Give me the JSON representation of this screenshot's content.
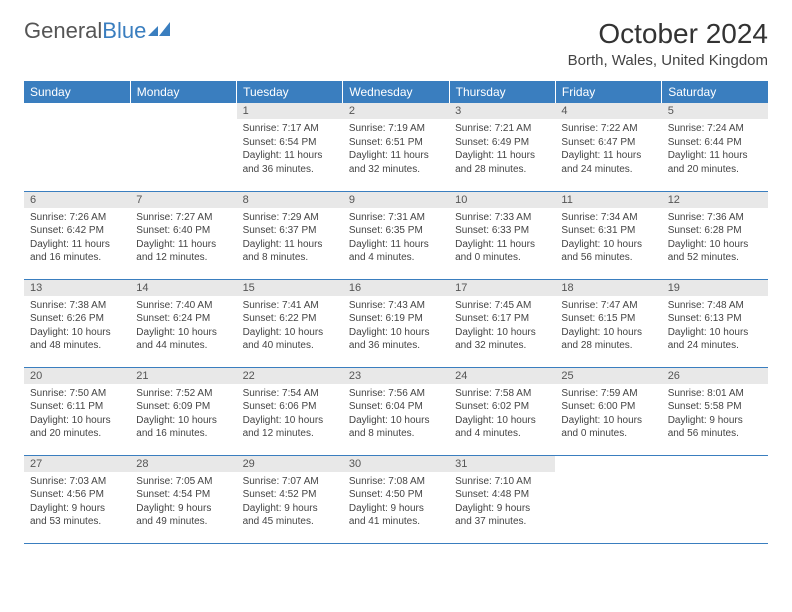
{
  "logo": {
    "part1": "General",
    "part2": "Blue"
  },
  "header": {
    "month": "October 2024",
    "location": "Borth, Wales, United Kingdom"
  },
  "colors": {
    "header_bg": "#3a7ebf",
    "header_fg": "#ffffff",
    "daynum_bg": "#e8e8e8",
    "border": "#3a7ebf"
  },
  "weekdays": [
    "Sunday",
    "Monday",
    "Tuesday",
    "Wednesday",
    "Thursday",
    "Friday",
    "Saturday"
  ],
  "weeks": [
    [
      null,
      null,
      {
        "n": "1",
        "sr": "Sunrise: 7:17 AM",
        "ss": "Sunset: 6:54 PM",
        "dl": "Daylight: 11 hours and 36 minutes."
      },
      {
        "n": "2",
        "sr": "Sunrise: 7:19 AM",
        "ss": "Sunset: 6:51 PM",
        "dl": "Daylight: 11 hours and 32 minutes."
      },
      {
        "n": "3",
        "sr": "Sunrise: 7:21 AM",
        "ss": "Sunset: 6:49 PM",
        "dl": "Daylight: 11 hours and 28 minutes."
      },
      {
        "n": "4",
        "sr": "Sunrise: 7:22 AM",
        "ss": "Sunset: 6:47 PM",
        "dl": "Daylight: 11 hours and 24 minutes."
      },
      {
        "n": "5",
        "sr": "Sunrise: 7:24 AM",
        "ss": "Sunset: 6:44 PM",
        "dl": "Daylight: 11 hours and 20 minutes."
      }
    ],
    [
      {
        "n": "6",
        "sr": "Sunrise: 7:26 AM",
        "ss": "Sunset: 6:42 PM",
        "dl": "Daylight: 11 hours and 16 minutes."
      },
      {
        "n": "7",
        "sr": "Sunrise: 7:27 AM",
        "ss": "Sunset: 6:40 PM",
        "dl": "Daylight: 11 hours and 12 minutes."
      },
      {
        "n": "8",
        "sr": "Sunrise: 7:29 AM",
        "ss": "Sunset: 6:37 PM",
        "dl": "Daylight: 11 hours and 8 minutes."
      },
      {
        "n": "9",
        "sr": "Sunrise: 7:31 AM",
        "ss": "Sunset: 6:35 PM",
        "dl": "Daylight: 11 hours and 4 minutes."
      },
      {
        "n": "10",
        "sr": "Sunrise: 7:33 AM",
        "ss": "Sunset: 6:33 PM",
        "dl": "Daylight: 11 hours and 0 minutes."
      },
      {
        "n": "11",
        "sr": "Sunrise: 7:34 AM",
        "ss": "Sunset: 6:31 PM",
        "dl": "Daylight: 10 hours and 56 minutes."
      },
      {
        "n": "12",
        "sr": "Sunrise: 7:36 AM",
        "ss": "Sunset: 6:28 PM",
        "dl": "Daylight: 10 hours and 52 minutes."
      }
    ],
    [
      {
        "n": "13",
        "sr": "Sunrise: 7:38 AM",
        "ss": "Sunset: 6:26 PM",
        "dl": "Daylight: 10 hours and 48 minutes."
      },
      {
        "n": "14",
        "sr": "Sunrise: 7:40 AM",
        "ss": "Sunset: 6:24 PM",
        "dl": "Daylight: 10 hours and 44 minutes."
      },
      {
        "n": "15",
        "sr": "Sunrise: 7:41 AM",
        "ss": "Sunset: 6:22 PM",
        "dl": "Daylight: 10 hours and 40 minutes."
      },
      {
        "n": "16",
        "sr": "Sunrise: 7:43 AM",
        "ss": "Sunset: 6:19 PM",
        "dl": "Daylight: 10 hours and 36 minutes."
      },
      {
        "n": "17",
        "sr": "Sunrise: 7:45 AM",
        "ss": "Sunset: 6:17 PM",
        "dl": "Daylight: 10 hours and 32 minutes."
      },
      {
        "n": "18",
        "sr": "Sunrise: 7:47 AM",
        "ss": "Sunset: 6:15 PM",
        "dl": "Daylight: 10 hours and 28 minutes."
      },
      {
        "n": "19",
        "sr": "Sunrise: 7:48 AM",
        "ss": "Sunset: 6:13 PM",
        "dl": "Daylight: 10 hours and 24 minutes."
      }
    ],
    [
      {
        "n": "20",
        "sr": "Sunrise: 7:50 AM",
        "ss": "Sunset: 6:11 PM",
        "dl": "Daylight: 10 hours and 20 minutes."
      },
      {
        "n": "21",
        "sr": "Sunrise: 7:52 AM",
        "ss": "Sunset: 6:09 PM",
        "dl": "Daylight: 10 hours and 16 minutes."
      },
      {
        "n": "22",
        "sr": "Sunrise: 7:54 AM",
        "ss": "Sunset: 6:06 PM",
        "dl": "Daylight: 10 hours and 12 minutes."
      },
      {
        "n": "23",
        "sr": "Sunrise: 7:56 AM",
        "ss": "Sunset: 6:04 PM",
        "dl": "Daylight: 10 hours and 8 minutes."
      },
      {
        "n": "24",
        "sr": "Sunrise: 7:58 AM",
        "ss": "Sunset: 6:02 PM",
        "dl": "Daylight: 10 hours and 4 minutes."
      },
      {
        "n": "25",
        "sr": "Sunrise: 7:59 AM",
        "ss": "Sunset: 6:00 PM",
        "dl": "Daylight: 10 hours and 0 minutes."
      },
      {
        "n": "26",
        "sr": "Sunrise: 8:01 AM",
        "ss": "Sunset: 5:58 PM",
        "dl": "Daylight: 9 hours and 56 minutes."
      }
    ],
    [
      {
        "n": "27",
        "sr": "Sunrise: 7:03 AM",
        "ss": "Sunset: 4:56 PM",
        "dl": "Daylight: 9 hours and 53 minutes."
      },
      {
        "n": "28",
        "sr": "Sunrise: 7:05 AM",
        "ss": "Sunset: 4:54 PM",
        "dl": "Daylight: 9 hours and 49 minutes."
      },
      {
        "n": "29",
        "sr": "Sunrise: 7:07 AM",
        "ss": "Sunset: 4:52 PM",
        "dl": "Daylight: 9 hours and 45 minutes."
      },
      {
        "n": "30",
        "sr": "Sunrise: 7:08 AM",
        "ss": "Sunset: 4:50 PM",
        "dl": "Daylight: 9 hours and 41 minutes."
      },
      {
        "n": "31",
        "sr": "Sunrise: 7:10 AM",
        "ss": "Sunset: 4:48 PM",
        "dl": "Daylight: 9 hours and 37 minutes."
      },
      null,
      null
    ]
  ]
}
